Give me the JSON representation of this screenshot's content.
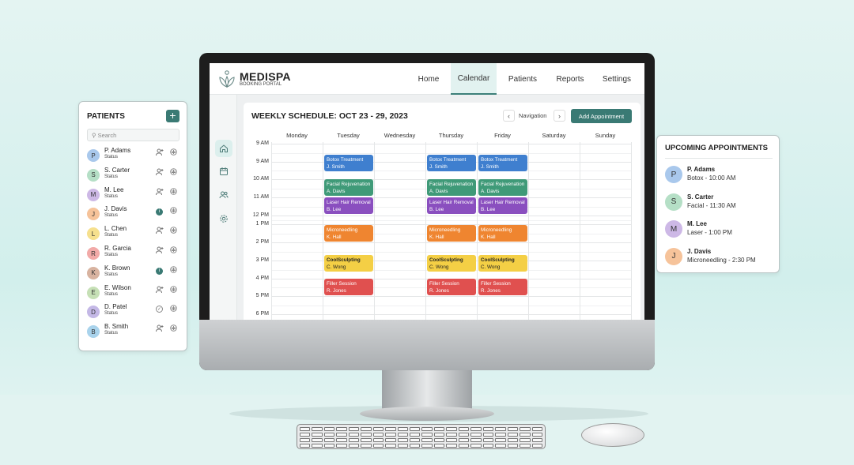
{
  "app": {
    "brand": "MEDISPA",
    "subtitle": "BOOKING PORTAL"
  },
  "nav": [
    {
      "label": "Home"
    },
    {
      "label": "Calendar",
      "active": true
    },
    {
      "label": "Patients"
    },
    {
      "label": "Reports"
    },
    {
      "label": "Settings"
    }
  ],
  "sidebar": [
    {
      "icon": "home-icon",
      "active": true
    },
    {
      "icon": "calendar-icon"
    },
    {
      "icon": "users-icon"
    },
    {
      "icon": "gear-icon"
    }
  ],
  "schedule": {
    "title": "WEEKLY SCHEDULE: OCT 23 - 29, 2023",
    "navigation_label": "Navigation",
    "prev": "‹",
    "next": "›",
    "add_label": "Add Appointment",
    "days": [
      "Monday",
      "Tuesday",
      "Wednesday",
      "Thursday",
      "Friday",
      "Saturday",
      "Sunday"
    ],
    "times": [
      "9 AM",
      "9 AM",
      "10 AM",
      "11 AM",
      "12 PM",
      "1 PM",
      "2 PM",
      "3 PM",
      "4 PM",
      "5 PM",
      "6 PM"
    ],
    "appointment_days": [
      "Tuesday",
      "Thursday",
      "Friday"
    ],
    "appointments": [
      {
        "service": "Botox Treatment",
        "client": "J. Smith",
        "color": "#3f7fcf"
      },
      {
        "service": "Facial Rejuvenation",
        "client": "A. Davis",
        "color": "#3f9a78"
      },
      {
        "service": "Laser Hair Removal",
        "client": "B. Lee",
        "color": "#8a4fbf"
      },
      {
        "service": "Microneedling",
        "client": "K. Hall",
        "color": "#ef8530"
      },
      {
        "service": "CoolSculpting",
        "client": "C. Wong",
        "color": "#f4cf45",
        "text_color": "#222"
      },
      {
        "service": "Filler Session",
        "client": "R. Jones",
        "color": "#e0504f"
      }
    ]
  },
  "patients": {
    "title": "PATIENTS",
    "add": "+",
    "search_placeholder": "Search",
    "items": [
      {
        "initial": "P",
        "name": "P. Adams",
        "status": "Status",
        "color": "#a9c8ec",
        "action": "add-user"
      },
      {
        "initial": "S",
        "name": "S. Carter",
        "status": "Status",
        "color": "#b5dfc6",
        "action": "add-user"
      },
      {
        "initial": "M",
        "name": "M. Lee",
        "status": "Status",
        "color": "#cdb8e6",
        "action": "add-user"
      },
      {
        "initial": "J",
        "name": "J. Davis",
        "status": "Status",
        "color": "#f6c39a",
        "action": "info"
      },
      {
        "initial": "L",
        "name": "L. Chen",
        "status": "Status",
        "color": "#f6e08e",
        "action": "add-user"
      },
      {
        "initial": "R",
        "name": "R. Garcia",
        "status": "Status",
        "color": "#f2aaa8",
        "action": "add-user"
      },
      {
        "initial": "K",
        "name": "K. Brown",
        "status": "Status",
        "color": "#d8b3a0",
        "action": "info"
      },
      {
        "initial": "E",
        "name": "E. Wilson",
        "status": "Status",
        "color": "#c6e0b6",
        "action": "add-user"
      },
      {
        "initial": "D",
        "name": "D. Patel",
        "status": "Status",
        "color": "#c4b8e6",
        "action": "check"
      },
      {
        "initial": "B",
        "name": "B. Smith",
        "status": "Status",
        "color": "#a9d3ec",
        "action": "add-user"
      }
    ]
  },
  "upcoming": {
    "title": "UPCOMING APPOINTMENTS",
    "items": [
      {
        "initial": "P",
        "name": "P. Adams",
        "detail": "Botox - 10:00 AM",
        "color": "#a9c8ec"
      },
      {
        "initial": "S",
        "name": "S. Carter",
        "detail": "Facial - 11:30 AM",
        "color": "#b5dfc6"
      },
      {
        "initial": "M",
        "name": "M. Lee",
        "detail": "Laser - 1:00 PM",
        "color": "#cdb8e6"
      },
      {
        "initial": "J",
        "name": "J. Davis",
        "detail": "Microneedling - 2:30 PM",
        "color": "#f6c39a"
      }
    ]
  }
}
